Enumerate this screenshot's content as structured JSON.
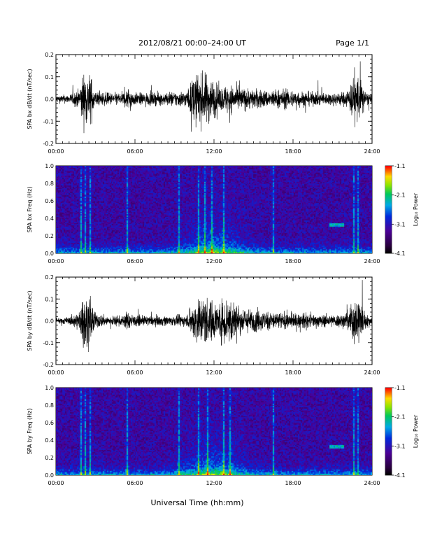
{
  "header": {
    "date_range": "2012/08/21   00:00–24:00 UT",
    "page": "Page 1/1"
  },
  "footer": {
    "xlabel": "Universal Time (hh:mm)"
  },
  "chart_data": [
    {
      "type": "line",
      "ylabel": "SPA bx dB/dt (nT/sec)",
      "xlim": [
        0,
        24
      ],
      "ylim": [
        -0.2,
        0.2
      ],
      "x_tick_labels": [
        "00:00",
        "06:00",
        "12:00",
        "18:00",
        "24:00"
      ],
      "y_tick_labels": [
        "0.2",
        "0.1",
        "0.0",
        "-0.1",
        "-0.2"
      ],
      "y_ticks": [
        0.2,
        0.1,
        0.0,
        -0.1,
        -0.2
      ],
      "envelope": {
        "hours": [
          0,
          1,
          1.8,
          2,
          2.3,
          2.6,
          3,
          4,
          5,
          5.5,
          6,
          7,
          8,
          9,
          10,
          10.3,
          10.5,
          11,
          11.5,
          12,
          12.5,
          13,
          14,
          15,
          16,
          17,
          18,
          19,
          20,
          21,
          22,
          22.5,
          22.8,
          23,
          23.5,
          24
        ],
        "amplitude": [
          0.03,
          0.035,
          0.08,
          0.2,
          0.2,
          0.2,
          0.06,
          0.05,
          0.05,
          0.09,
          0.05,
          0.05,
          0.05,
          0.06,
          0.07,
          0.15,
          0.2,
          0.2,
          0.2,
          0.15,
          0.09,
          0.12,
          0.09,
          0.08,
          0.07,
          0.08,
          0.07,
          0.06,
          0.05,
          0.05,
          0.06,
          0.15,
          0.2,
          0.2,
          0.06,
          0.03
        ]
      }
    },
    {
      "type": "heatmap",
      "ylabel": "SPA bx Freq (Hz)",
      "xlim": [
        0,
        24
      ],
      "ylim": [
        0,
        1.0
      ],
      "x_tick_labels": [
        "00:00",
        "06:00",
        "12:00",
        "18:00",
        "24:00"
      ],
      "y_tick_labels": [
        "1.0",
        "0.8",
        "0.6",
        "0.4",
        "0.2",
        "0.0"
      ],
      "y_ticks": [
        1.0,
        0.8,
        0.6,
        0.4,
        0.2,
        0.0
      ],
      "colorbar": {
        "label": "Log₁₀ Power",
        "range": [
          -4.1,
          -1.1
        ],
        "tick_labels": [
          "-1.1",
          "-2.1",
          "-3.1",
          "-4.1"
        ],
        "ticks": [
          -1.1,
          -2.1,
          -3.1,
          -4.1
        ]
      },
      "bright_stripes_hours": [
        1.9,
        2.2,
        2.6,
        5.4,
        9.3,
        10.8,
        11.3,
        11.8,
        12.7,
        16.5,
        22.6,
        22.9
      ],
      "tone": {
        "hours": [
          20.8,
          21.8
        ],
        "freq_hz": 0.33
      }
    },
    {
      "type": "line",
      "ylabel": "SPA by dB/dt (nT/sec)",
      "xlim": [
        0,
        24
      ],
      "ylim": [
        -0.2,
        0.2
      ],
      "x_tick_labels": [
        "00:00",
        "06:00",
        "12:00",
        "18:00",
        "24:00"
      ],
      "y_tick_labels": [
        "0.2",
        "0.1",
        "0.0",
        "-0.1",
        "-0.2"
      ],
      "y_ticks": [
        0.2,
        0.1,
        0.0,
        -0.1,
        -0.2
      ],
      "envelope": {
        "hours": [
          0,
          1,
          1.8,
          2,
          2.3,
          2.6,
          3,
          4,
          5,
          5.5,
          6,
          7,
          8,
          9,
          10,
          10.3,
          10.8,
          11.3,
          11.8,
          12.3,
          12.8,
          13.3,
          14,
          15,
          16,
          17,
          18,
          19,
          20,
          21,
          22,
          22.5,
          22.8,
          23,
          23.5,
          24
        ],
        "amplitude": [
          0.025,
          0.03,
          0.08,
          0.2,
          0.2,
          0.2,
          0.06,
          0.04,
          0.04,
          0.08,
          0.04,
          0.04,
          0.04,
          0.04,
          0.05,
          0.12,
          0.2,
          0.2,
          0.17,
          0.13,
          0.2,
          0.2,
          0.1,
          0.09,
          0.08,
          0.07,
          0.06,
          0.06,
          0.05,
          0.05,
          0.06,
          0.15,
          0.2,
          0.2,
          0.06,
          0.03
        ]
      }
    },
    {
      "type": "heatmap",
      "ylabel": "SPA by Freq (Hz)",
      "xlim": [
        0,
        24
      ],
      "ylim": [
        0,
        1.0
      ],
      "x_tick_labels": [
        "00:00",
        "06:00",
        "12:00",
        "18:00",
        "24:00"
      ],
      "y_tick_labels": [
        "1.0",
        "0.8",
        "0.6",
        "0.4",
        "0.2",
        "0.0"
      ],
      "y_ticks": [
        1.0,
        0.8,
        0.6,
        0.4,
        0.2,
        0.0
      ],
      "colorbar": {
        "label": "Log₁₀ Power",
        "range": [
          -4.1,
          -1.1
        ],
        "tick_labels": [
          "-1.1",
          "-2.1",
          "-3.1",
          "-4.1"
        ],
        "ticks": [
          -1.1,
          -2.1,
          -3.1,
          -4.1
        ]
      },
      "bright_stripes_hours": [
        1.9,
        2.2,
        2.6,
        5.4,
        9.3,
        10.8,
        11.5,
        12.7,
        13.2,
        16.5,
        22.6,
        22.9
      ],
      "tone": {
        "hours": [
          20.8,
          21.8
        ],
        "freq_hz": 0.33
      }
    }
  ]
}
